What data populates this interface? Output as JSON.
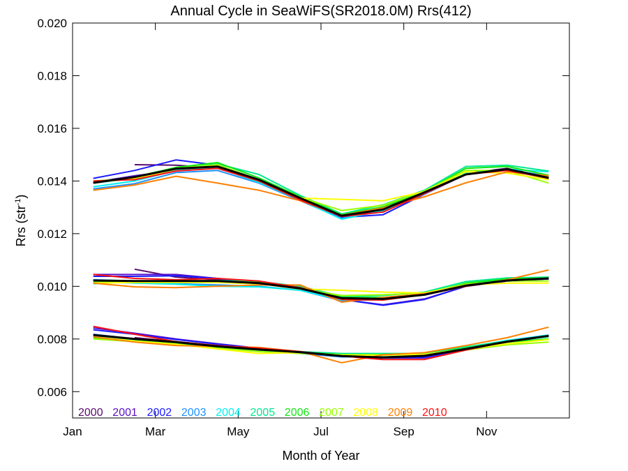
{
  "chart_data": {
    "type": "line",
    "title": "Annual Cycle in SeaWiFS(SR2018.0M) Rrs(412)",
    "xlabel": "Month of Year",
    "ylabel_main": "Rrs (str",
    "ylabel_sup": "-1",
    "ylabel_end": ")",
    "xlim": [
      0,
      12
    ],
    "ylim": [
      0.005,
      0.02
    ],
    "x_ticks": [
      {
        "value": 0,
        "label": "Jan"
      },
      {
        "value": 2,
        "label": "Mar"
      },
      {
        "value": 4,
        "label": "May"
      },
      {
        "value": 6,
        "label": "Jul"
      },
      {
        "value": 8,
        "label": "Sep"
      },
      {
        "value": 10,
        "label": "Nov"
      }
    ],
    "y_ticks": [
      "0.006",
      "0.008",
      "0.010",
      "0.012",
      "0.014",
      "0.016",
      "0.018",
      "0.020"
    ],
    "x": [
      0.5,
      1.5,
      2.5,
      3.5,
      4.5,
      5.5,
      6.5,
      7.5,
      8.5,
      9.5,
      10.5,
      11.5
    ],
    "mean_color": "#000000",
    "groups": [
      "upper",
      "middle",
      "lower"
    ],
    "mean": {
      "upper": [
        0.01393,
        0.01415,
        0.01447,
        0.01455,
        0.01405,
        0.01335,
        0.01268,
        0.01292,
        0.01357,
        0.01425,
        0.01445,
        0.01412
      ],
      "middle": [
        0.01022,
        0.0102,
        0.0102,
        0.0102,
        0.01012,
        0.00992,
        0.00955,
        0.00952,
        0.00968,
        0.01003,
        0.01022,
        0.0103
      ],
      "lower": [
        0.00815,
        0.008,
        0.00788,
        0.00772,
        0.0076,
        0.0075,
        0.00735,
        0.0073,
        0.00736,
        0.00762,
        0.0079,
        0.00812
      ]
    },
    "series": [
      {
        "name": "2000",
        "color": "#5a0a6e",
        "upper": [
          null,
          0.01462,
          0.0146,
          0.0145,
          0.014,
          0.01335,
          0.01268,
          0.01295,
          0.0136,
          0.0143,
          0.01448,
          0.01413
        ],
        "middle": [
          null,
          0.01065,
          0.01035,
          0.01025,
          0.01012,
          0.0099,
          0.00955,
          0.0095,
          0.00968,
          0.01003,
          0.01025,
          0.01032
        ],
        "lower": [
          null,
          0.00805,
          0.0079,
          0.00775,
          0.0076,
          0.0075,
          0.00735,
          0.0073,
          0.00735,
          0.00762,
          0.0079,
          0.00812
        ]
      },
      {
        "name": "2001",
        "color": "#5a10c8",
        "upper": [
          0.01395,
          0.0142,
          0.0144,
          0.01455,
          0.014,
          0.0133,
          0.01265,
          0.01285,
          0.01355,
          0.01428,
          0.01445,
          0.0141
        ],
        "middle": [
          0.01045,
          0.01045,
          0.01045,
          0.0103,
          0.01015,
          0.0099,
          0.0095,
          0.0093,
          0.00952,
          0.01,
          0.0102,
          0.01028
        ],
        "lower": [
          0.00842,
          0.00822,
          0.008,
          0.00782,
          0.00765,
          0.00752,
          0.00735,
          0.00728,
          0.00728,
          0.0076,
          0.0079,
          0.0081
        ]
      },
      {
        "name": "2002",
        "color": "#1a1aff",
        "upper": [
          0.0141,
          0.0144,
          0.0148,
          0.0146,
          0.014,
          0.0133,
          0.01262,
          0.01272,
          0.0135,
          0.01425,
          0.01445,
          0.0141
        ],
        "middle": [
          0.01038,
          0.01038,
          0.0104,
          0.0103,
          0.01015,
          0.0099,
          0.0095,
          0.00928,
          0.0095,
          0.01,
          0.0102,
          0.01028
        ],
        "lower": [
          0.00835,
          0.00818,
          0.00798,
          0.0078,
          0.00765,
          0.0075,
          0.00735,
          0.00728,
          0.0073,
          0.0076,
          0.00788,
          0.0081
        ]
      },
      {
        "name": "2003",
        "color": "#1e90ff",
        "upper": [
          0.0137,
          0.0139,
          0.01432,
          0.0144,
          0.01392,
          0.01325,
          0.01258,
          0.01285,
          0.0135,
          0.01425,
          0.01442,
          0.0142
        ],
        "middle": [
          0.01025,
          0.0102,
          0.0101,
          0.01005,
          0.01,
          0.00985,
          0.00945,
          0.0095,
          0.00968,
          0.01005,
          0.01025,
          0.01033
        ],
        "lower": [
          0.00818,
          0.008,
          0.00785,
          0.0077,
          0.00758,
          0.00745,
          0.00732,
          0.00732,
          0.00738,
          0.00765,
          0.00793,
          0.00815
        ]
      },
      {
        "name": "2004",
        "color": "#00f0f0",
        "upper": [
          0.01378,
          0.014,
          0.0144,
          0.0145,
          0.01395,
          0.01328,
          0.01255,
          0.01288,
          0.01355,
          0.0143,
          0.01445,
          0.01435
        ],
        "middle": [
          0.01018,
          0.01012,
          0.01008,
          0.01,
          0.00998,
          0.00985,
          0.00948,
          0.00955,
          0.00972,
          0.0101,
          0.01028,
          0.01035
        ],
        "lower": [
          0.0081,
          0.00795,
          0.00782,
          0.00768,
          0.00758,
          0.00748,
          0.0074,
          0.00738,
          0.00742,
          0.00768,
          0.00795,
          0.00815
        ]
      },
      {
        "name": "2005",
        "color": "#00e890",
        "upper": [
          0.01392,
          0.0141,
          0.01445,
          0.01465,
          0.01425,
          0.01345,
          0.01275,
          0.0131,
          0.01365,
          0.01455,
          0.0146,
          0.01438
        ],
        "middle": [
          0.0101,
          0.01018,
          0.0102,
          0.01022,
          0.01018,
          0.01,
          0.00962,
          0.00965,
          0.00978,
          0.01018,
          0.01032,
          0.01035
        ],
        "lower": [
          0.00805,
          0.00795,
          0.00785,
          0.00772,
          0.0076,
          0.00752,
          0.00745,
          0.00745,
          0.00745,
          0.0077,
          0.00792,
          0.00808
        ]
      },
      {
        "name": "2006",
        "color": "#10e810",
        "upper": [
          0.01395,
          0.01415,
          0.01452,
          0.0147,
          0.01412,
          0.0134,
          0.01272,
          0.01302,
          0.0136,
          0.01448,
          0.01455,
          0.01422
        ],
        "middle": [
          0.01015,
          0.01018,
          0.01018,
          0.0102,
          0.01015,
          0.00995,
          0.00958,
          0.00958,
          0.00972,
          0.01012,
          0.01028,
          0.01032
        ],
        "lower": [
          0.00805,
          0.00792,
          0.00782,
          0.0077,
          0.00758,
          0.0075,
          0.0074,
          0.0074,
          0.00742,
          0.00765,
          0.00788,
          0.008
        ]
      },
      {
        "name": "2007",
        "color": "#9aff00",
        "upper": [
          0.014,
          0.0141,
          0.01448,
          0.01462,
          0.01405,
          0.01338,
          0.01288,
          0.01308,
          0.01362,
          0.0144,
          0.0144,
          0.01392
        ],
        "middle": [
          0.01015,
          0.01015,
          0.01015,
          0.01015,
          0.0101,
          0.0099,
          0.00965,
          0.00968,
          0.00975,
          0.01008,
          0.0102,
          0.0102
        ],
        "lower": [
          0.008,
          0.0079,
          0.00778,
          0.00765,
          0.00752,
          0.00745,
          0.0074,
          0.0074,
          0.0074,
          0.00758,
          0.00778,
          0.00788
        ]
      },
      {
        "name": "2008",
        "color": "#ffff00",
        "upper": [
          0.01395,
          0.01408,
          0.01445,
          0.01458,
          0.01402,
          0.01335,
          0.0133,
          0.01325,
          0.0136,
          0.01435,
          0.0143,
          0.01405
        ],
        "middle": [
          0.01012,
          0.01015,
          0.01015,
          0.01015,
          0.0101,
          0.0099,
          0.00985,
          0.00978,
          0.00975,
          0.01005,
          0.01012,
          0.01012
        ],
        "lower": [
          0.00808,
          0.00792,
          0.0078,
          0.00762,
          0.00745,
          0.00748,
          0.00738,
          0.00738,
          0.00742,
          0.00762,
          0.00782,
          0.00798
        ]
      },
      {
        "name": "2009",
        "color": "#ff8000",
        "upper": [
          0.01365,
          0.01385,
          0.01418,
          0.01392,
          0.01365,
          0.01325,
          0.0127,
          0.01298,
          0.0134,
          0.01393,
          0.01435,
          0.0142
        ],
        "middle": [
          0.01012,
          0.00998,
          0.00995,
          0.01,
          0.01005,
          0.01005,
          0.0094,
          0.00958,
          0.00972,
          0.01,
          0.01025,
          0.01062
        ],
        "lower": [
          0.00808,
          0.00788,
          0.00775,
          0.00772,
          0.00768,
          0.00752,
          0.0071,
          0.0074,
          0.00748,
          0.00775,
          0.00805,
          0.00845
        ]
      },
      {
        "name": "2010",
        "color": "#ff1010",
        "upper": [
          0.014,
          0.01405,
          0.01438,
          0.01448,
          0.014,
          0.01328,
          0.01265,
          0.01282,
          0.01352,
          0.01425,
          0.0144,
          0.0141
        ],
        "middle": [
          0.01045,
          0.0103,
          0.01025,
          0.0103,
          0.0102,
          0.00995,
          0.0095,
          0.00948,
          0.00968,
          0.01,
          0.01022,
          0.0103
        ],
        "lower": [
          0.00848,
          0.00818,
          0.0079,
          0.00775,
          0.00765,
          0.00752,
          0.00735,
          0.00722,
          0.00722,
          0.00758,
          0.0079,
          0.00812
        ]
      }
    ]
  }
}
